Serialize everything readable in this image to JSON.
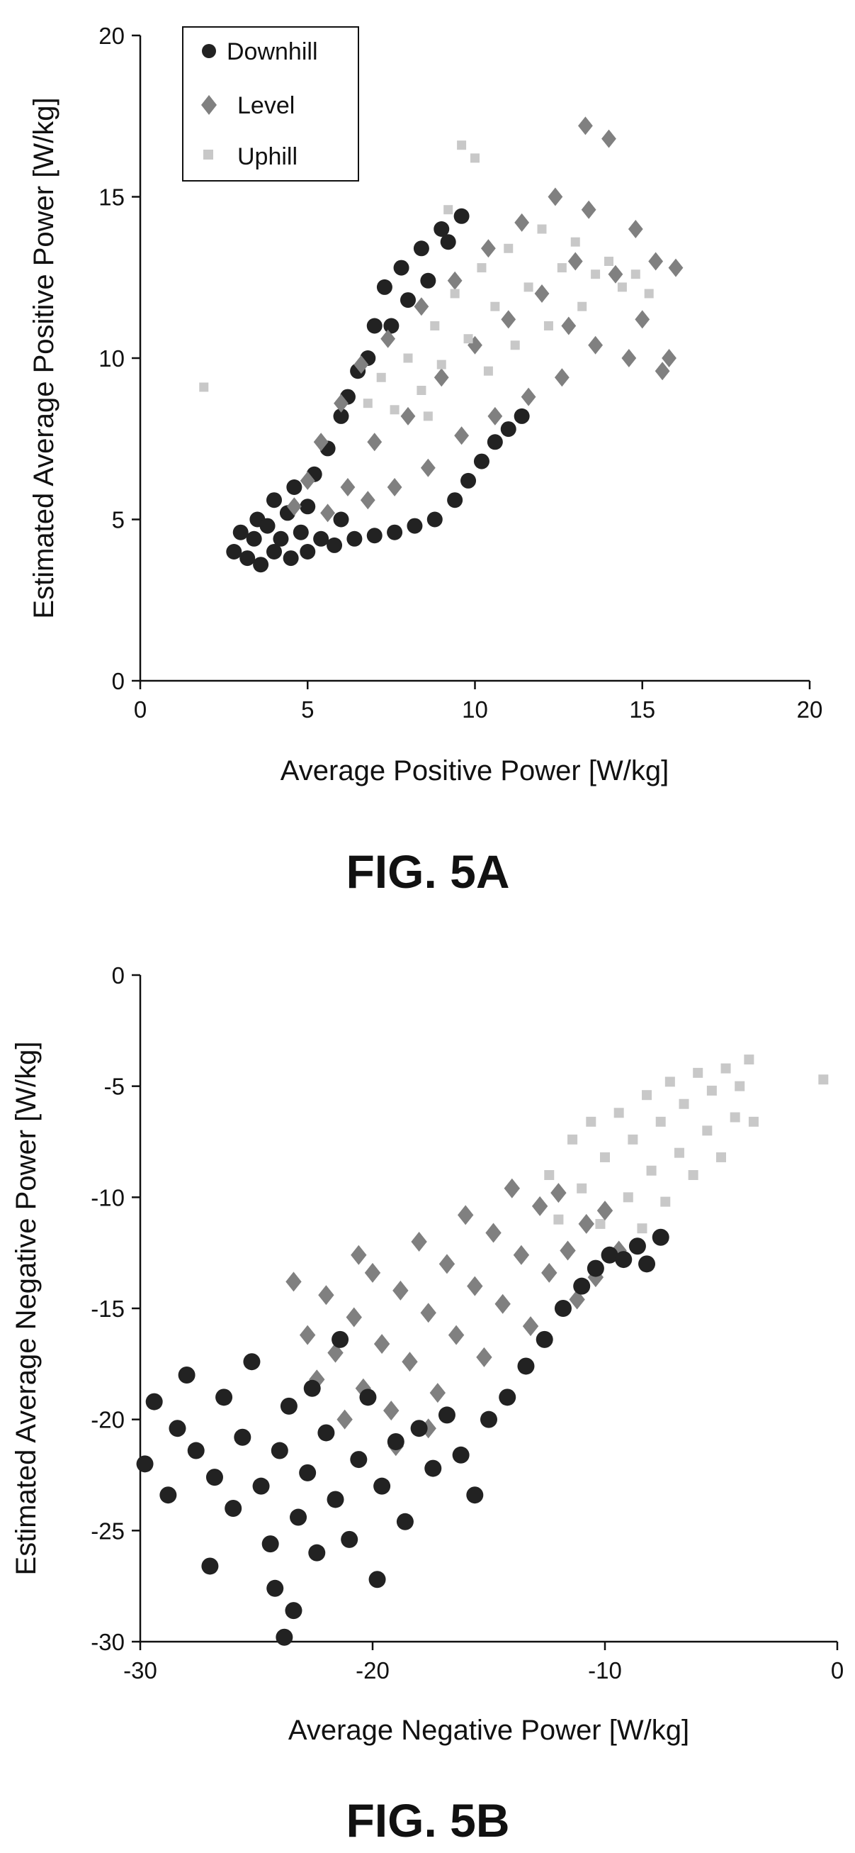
{
  "chart_data": [
    {
      "type": "scatter",
      "figure_label": "FIG.  5A",
      "xlabel": "Average Positive Power [W/kg]",
      "ylabel": "Estimated Average Positive Power [W/kg]",
      "xlim": [
        0,
        20
      ],
      "ylim": [
        0,
        20
      ],
      "xticks": [
        "0",
        "5",
        "10",
        "15",
        "20"
      ],
      "yticks": [
        "0",
        "5",
        "10",
        "15",
        "20"
      ],
      "grid": false,
      "legend_position": "top-left",
      "series": [
        {
          "name": "Downhill",
          "marker": "circle",
          "color": "#222222",
          "points": [
            [
              2.8,
              4.0
            ],
            [
              3.0,
              4.6
            ],
            [
              3.2,
              3.8
            ],
            [
              3.4,
              4.4
            ],
            [
              3.5,
              5.0
            ],
            [
              3.6,
              3.6
            ],
            [
              3.8,
              4.8
            ],
            [
              4.0,
              4.0
            ],
            [
              4.0,
              5.6
            ],
            [
              4.2,
              4.4
            ],
            [
              4.4,
              5.2
            ],
            [
              4.5,
              3.8
            ],
            [
              4.6,
              6.0
            ],
            [
              4.8,
              4.6
            ],
            [
              5.0,
              5.4
            ],
            [
              5.0,
              4.0
            ],
            [
              5.2,
              6.4
            ],
            [
              5.4,
              4.4
            ],
            [
              5.6,
              7.2
            ],
            [
              5.8,
              4.2
            ],
            [
              6.0,
              8.2
            ],
            [
              6.0,
              5.0
            ],
            [
              6.2,
              8.8
            ],
            [
              6.4,
              4.4
            ],
            [
              6.5,
              9.6
            ],
            [
              6.8,
              10.0
            ],
            [
              7.0,
              4.5
            ],
            [
              7.0,
              11.0
            ],
            [
              7.3,
              12.2
            ],
            [
              7.5,
              11.0
            ],
            [
              7.6,
              4.6
            ],
            [
              7.8,
              12.8
            ],
            [
              8.0,
              11.8
            ],
            [
              8.2,
              4.8
            ],
            [
              8.4,
              13.4
            ],
            [
              8.6,
              12.4
            ],
            [
              8.8,
              5.0
            ],
            [
              9.0,
              14.0
            ],
            [
              9.2,
              13.6
            ],
            [
              9.4,
              5.6
            ],
            [
              9.6,
              14.4
            ],
            [
              9.8,
              6.2
            ],
            [
              10.2,
              6.8
            ],
            [
              10.6,
              7.4
            ],
            [
              11.0,
              7.8
            ],
            [
              11.4,
              8.2
            ]
          ]
        },
        {
          "name": "Level",
          "marker": "diamond",
          "color": "#808080",
          "points": [
            [
              4.6,
              5.4
            ],
            [
              5.0,
              6.2
            ],
            [
              5.4,
              7.4
            ],
            [
              5.6,
              5.2
            ],
            [
              6.0,
              8.6
            ],
            [
              6.2,
              6.0
            ],
            [
              6.6,
              9.8
            ],
            [
              6.8,
              5.6
            ],
            [
              7.0,
              7.4
            ],
            [
              7.4,
              10.6
            ],
            [
              7.6,
              6.0
            ],
            [
              8.0,
              8.2
            ],
            [
              8.4,
              11.6
            ],
            [
              8.6,
              6.6
            ],
            [
              9.0,
              9.4
            ],
            [
              9.4,
              12.4
            ],
            [
              9.6,
              7.6
            ],
            [
              10.0,
              10.4
            ],
            [
              10.4,
              13.4
            ],
            [
              10.6,
              8.2
            ],
            [
              11.0,
              11.2
            ],
            [
              11.4,
              14.2
            ],
            [
              11.6,
              8.8
            ],
            [
              12.0,
              12.0
            ],
            [
              12.4,
              15.0
            ],
            [
              12.6,
              9.4
            ],
            [
              13.0,
              13.0
            ],
            [
              13.3,
              17.2
            ],
            [
              13.6,
              10.4
            ],
            [
              14.0,
              16.8
            ],
            [
              14.2,
              12.6
            ],
            [
              14.6,
              10.0
            ],
            [
              14.8,
              14.0
            ],
            [
              15.0,
              11.2
            ],
            [
              15.4,
              13.0
            ],
            [
              15.6,
              9.6
            ],
            [
              16.0,
              12.8
            ],
            [
              15.8,
              10.0
            ],
            [
              13.4,
              14.6
            ],
            [
              12.8,
              11.0
            ]
          ]
        },
        {
          "name": "Uphill",
          "marker": "square",
          "color": "#c8c8c8",
          "points": [
            [
              1.9,
              9.1
            ],
            [
              6.8,
              8.6
            ],
            [
              7.2,
              9.4
            ],
            [
              7.6,
              8.4
            ],
            [
              8.0,
              10.0
            ],
            [
              8.4,
              9.0
            ],
            [
              8.8,
              11.0
            ],
            [
              9.0,
              9.8
            ],
            [
              9.4,
              12.0
            ],
            [
              9.6,
              16.6
            ],
            [
              9.8,
              10.6
            ],
            [
              10.0,
              16.2
            ],
            [
              10.2,
              12.8
            ],
            [
              10.4,
              9.6
            ],
            [
              10.6,
              11.6
            ],
            [
              11.0,
              13.4
            ],
            [
              11.2,
              10.4
            ],
            [
              11.6,
              12.2
            ],
            [
              12.0,
              14.0
            ],
            [
              12.2,
              11.0
            ],
            [
              12.6,
              12.8
            ],
            [
              13.0,
              13.6
            ],
            [
              13.2,
              11.6
            ],
            [
              13.6,
              12.6
            ],
            [
              14.0,
              13.0
            ],
            [
              14.4,
              12.2
            ],
            [
              14.8,
              12.6
            ],
            [
              15.2,
              12.0
            ],
            [
              9.2,
              14.6
            ],
            [
              8.6,
              8.2
            ]
          ]
        }
      ]
    },
    {
      "type": "scatter",
      "figure_label": "FIG.  5B",
      "xlabel": "Average Negative Power [W/kg]",
      "ylabel": "Estimated  Average Negative Power [W/kg]",
      "xlim": [
        -30,
        0
      ],
      "ylim": [
        -30,
        0
      ],
      "xticks": [
        "-30",
        "-20",
        "-10",
        "0"
      ],
      "yticks": [
        "-30",
        "-25",
        "-20",
        "-15",
        "-10",
        "-5",
        "0"
      ],
      "grid": false,
      "legend_position": "none",
      "series": [
        {
          "name": "Downhill",
          "marker": "circle",
          "color": "#222222",
          "points": [
            [
              -29.8,
              -22.0
            ],
            [
              -29.4,
              -19.2
            ],
            [
              -28.8,
              -23.4
            ],
            [
              -28.4,
              -20.4
            ],
            [
              -28.0,
              -18.0
            ],
            [
              -27.6,
              -21.4
            ],
            [
              -27.0,
              -26.6
            ],
            [
              -26.8,
              -22.6
            ],
            [
              -26.4,
              -19.0
            ],
            [
              -26.0,
              -24.0
            ],
            [
              -25.6,
              -20.8
            ],
            [
              -25.2,
              -17.4
            ],
            [
              -24.8,
              -23.0
            ],
            [
              -24.4,
              -25.6
            ],
            [
              -24.2,
              -27.6
            ],
            [
              -24.0,
              -21.4
            ],
            [
              -23.8,
              -29.8
            ],
            [
              -23.6,
              -19.4
            ],
            [
              -23.4,
              -28.6
            ],
            [
              -23.2,
              -24.4
            ],
            [
              -22.8,
              -22.4
            ],
            [
              -22.6,
              -18.6
            ],
            [
              -22.4,
              -26.0
            ],
            [
              -22.0,
              -20.6
            ],
            [
              -21.6,
              -23.6
            ],
            [
              -21.4,
              -16.4
            ],
            [
              -21.0,
              -25.4
            ],
            [
              -20.6,
              -21.8
            ],
            [
              -20.2,
              -19.0
            ],
            [
              -19.8,
              -27.2
            ],
            [
              -19.6,
              -23.0
            ],
            [
              -19.0,
              -21.0
            ],
            [
              -18.6,
              -24.6
            ],
            [
              -18.0,
              -20.4
            ],
            [
              -17.4,
              -22.2
            ],
            [
              -16.8,
              -19.8
            ],
            [
              -16.2,
              -21.6
            ],
            [
              -15.6,
              -23.4
            ],
            [
              -15.0,
              -20.0
            ],
            [
              -14.2,
              -19.0
            ],
            [
              -13.4,
              -17.6
            ],
            [
              -12.6,
              -16.4
            ],
            [
              -11.8,
              -15.0
            ],
            [
              -11.0,
              -14.0
            ],
            [
              -10.4,
              -13.2
            ],
            [
              -9.8,
              -12.6
            ],
            [
              -9.2,
              -12.8
            ],
            [
              -8.6,
              -12.2
            ],
            [
              -8.2,
              -13.0
            ],
            [
              -7.6,
              -11.8
            ]
          ]
        },
        {
          "name": "Level",
          "marker": "diamond",
          "color": "#808080",
          "points": [
            [
              -23.4,
              -13.8
            ],
            [
              -22.8,
              -16.2
            ],
            [
              -22.4,
              -18.2
            ],
            [
              -22.0,
              -14.4
            ],
            [
              -21.6,
              -17.0
            ],
            [
              -21.2,
              -20.0
            ],
            [
              -20.8,
              -15.4
            ],
            [
              -20.4,
              -18.6
            ],
            [
              -20.0,
              -13.4
            ],
            [
              -19.6,
              -16.6
            ],
            [
              -19.2,
              -19.6
            ],
            [
              -18.8,
              -14.2
            ],
            [
              -18.4,
              -17.4
            ],
            [
              -18.0,
              -12.0
            ],
            [
              -17.6,
              -15.2
            ],
            [
              -17.2,
              -18.8
            ],
            [
              -16.8,
              -13.0
            ],
            [
              -16.4,
              -16.2
            ],
            [
              -16.0,
              -10.8
            ],
            [
              -15.6,
              -14.0
            ],
            [
              -15.2,
              -17.2
            ],
            [
              -14.8,
              -11.6
            ],
            [
              -14.4,
              -14.8
            ],
            [
              -14.0,
              -9.6
            ],
            [
              -13.6,
              -12.6
            ],
            [
              -13.2,
              -15.8
            ],
            [
              -12.8,
              -10.4
            ],
            [
              -12.4,
              -13.4
            ],
            [
              -12.0,
              -9.8
            ],
            [
              -11.6,
              -12.4
            ],
            [
              -11.2,
              -14.6
            ],
            [
              -10.8,
              -11.2
            ],
            [
              -10.4,
              -13.6
            ],
            [
              -10.0,
              -10.6
            ],
            [
              -9.4,
              -12.4
            ],
            [
              -19.0,
              -21.2
            ],
            [
              -17.6,
              -20.4
            ],
            [
              -20.6,
              -12.6
            ]
          ]
        },
        {
          "name": "Uphill",
          "marker": "square",
          "color": "#c8c8c8",
          "points": [
            [
              -11.4,
              -7.4
            ],
            [
              -11.0,
              -9.6
            ],
            [
              -10.6,
              -6.6
            ],
            [
              -10.2,
              -11.2
            ],
            [
              -10.0,
              -8.2
            ],
            [
              -9.6,
              -12.6
            ],
            [
              -9.4,
              -6.2
            ],
            [
              -9.0,
              -10.0
            ],
            [
              -8.8,
              -7.4
            ],
            [
              -8.4,
              -11.4
            ],
            [
              -8.2,
              -5.4
            ],
            [
              -8.0,
              -8.8
            ],
            [
              -7.6,
              -6.6
            ],
            [
              -7.4,
              -10.2
            ],
            [
              -7.2,
              -4.8
            ],
            [
              -6.8,
              -8.0
            ],
            [
              -6.6,
              -5.8
            ],
            [
              -6.2,
              -9.0
            ],
            [
              -6.0,
              -4.4
            ],
            [
              -5.6,
              -7.0
            ],
            [
              -5.4,
              -5.2
            ],
            [
              -5.0,
              -8.2
            ],
            [
              -4.8,
              -4.2
            ],
            [
              -4.4,
              -6.4
            ],
            [
              -4.2,
              -5.0
            ],
            [
              -3.8,
              -3.8
            ],
            [
              -3.6,
              -6.6
            ],
            [
              -0.6,
              -4.7
            ],
            [
              -12.0,
              -11.0
            ],
            [
              -12.4,
              -9.0
            ]
          ]
        }
      ]
    }
  ]
}
